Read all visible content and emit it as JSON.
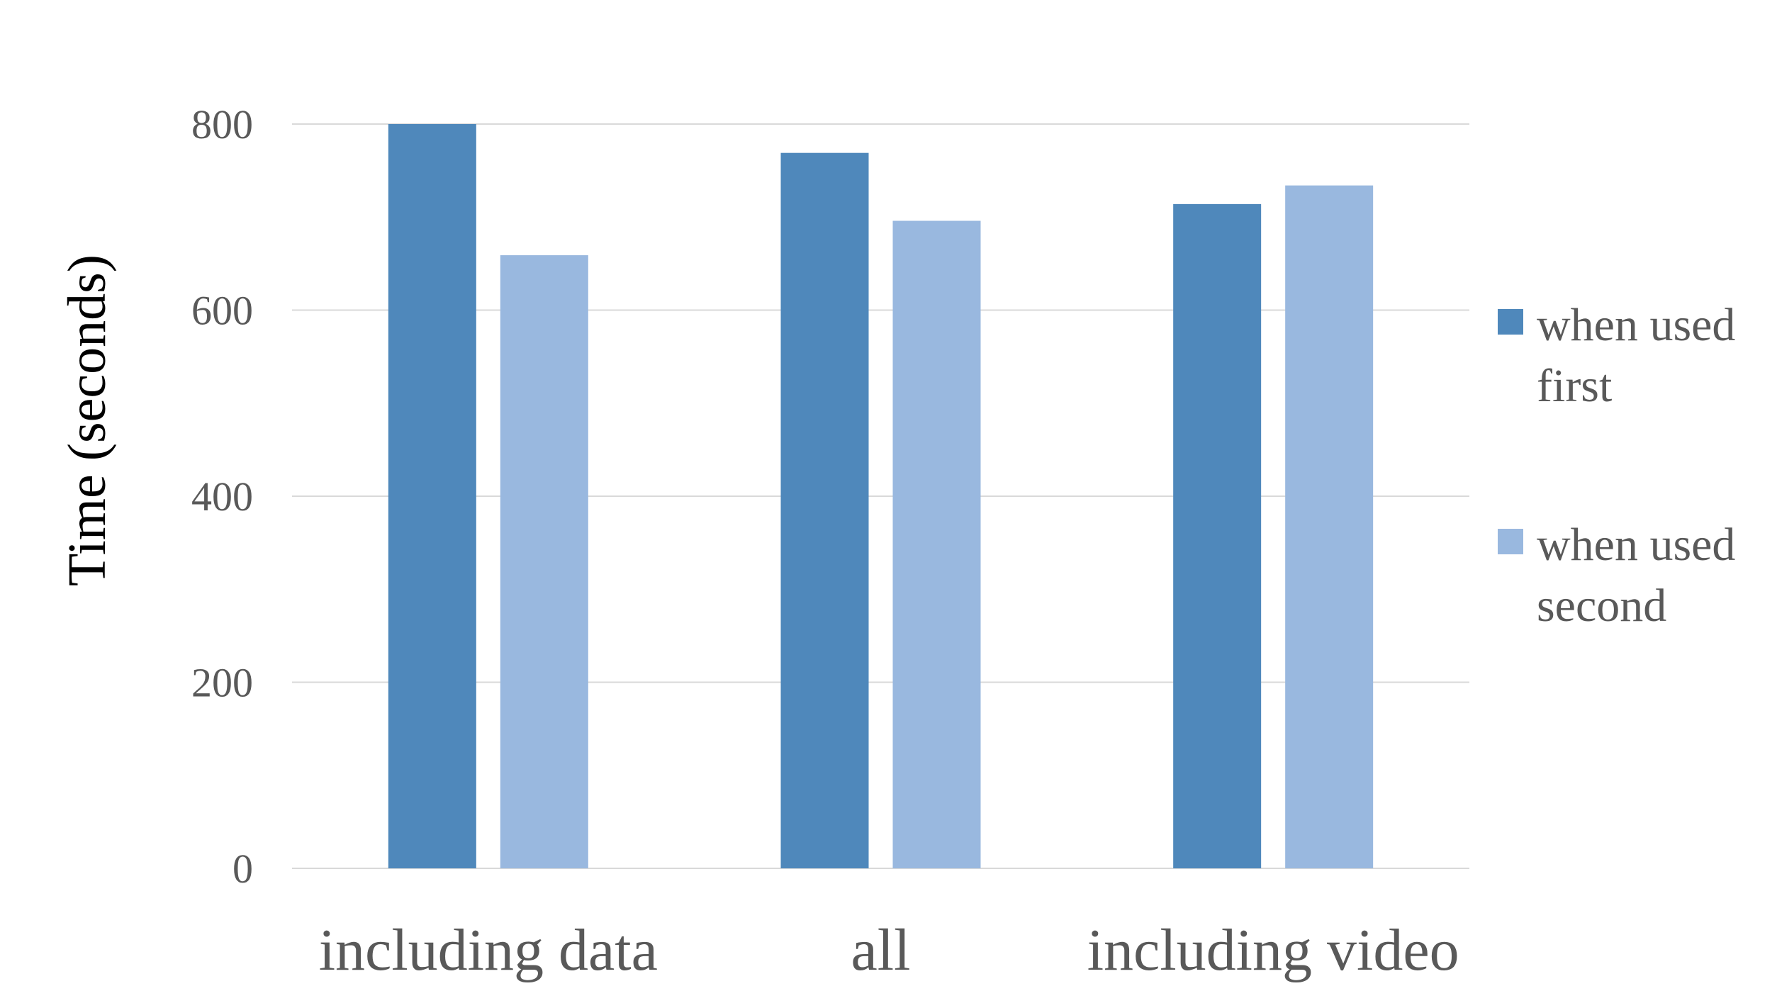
{
  "chart_data": {
    "type": "bar",
    "categories": [
      "including data",
      "all",
      "including video"
    ],
    "series": [
      {
        "name": "when used first",
        "color": "#4f88bb",
        "values": [
          800,
          769,
          714
        ]
      },
      {
        "name": "when used second",
        "color": "#99b8df",
        "values": [
          659,
          696,
          734
        ]
      }
    ],
    "title": "",
    "xlabel": "",
    "ylabel": "Time (seconds)",
    "ylim": [
      0,
      800
    ],
    "yticks": [
      0,
      200,
      400,
      600,
      800
    ],
    "grid": true,
    "legend_position": "right"
  }
}
